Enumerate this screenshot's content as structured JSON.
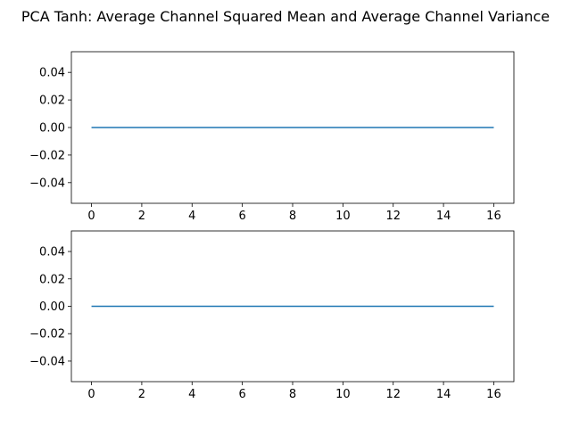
{
  "figure": {
    "title": "PCA Tanh: Average Channel Squared Mean and Average Channel Variance"
  },
  "chart_data": [
    {
      "type": "line",
      "title": "",
      "xlabel": "",
      "ylabel": "",
      "xlim": [
        -0.8,
        16.8
      ],
      "ylim": [
        -0.055,
        0.055
      ],
      "xticks": [
        0,
        2,
        4,
        6,
        8,
        10,
        12,
        14,
        16
      ],
      "xtick_labels": [
        "0",
        "2",
        "4",
        "6",
        "8",
        "10",
        "12",
        "14",
        "16"
      ],
      "yticks": [
        0.04,
        0.02,
        0.0,
        -0.02,
        -0.04
      ],
      "ytick_labels": [
        "0.04",
        "0.02",
        "0.00",
        "−0.02",
        "−0.04"
      ],
      "grid": false,
      "series": [
        {
          "color": "#1f77b4",
          "x": [
            0,
            1,
            2,
            3,
            4,
            5,
            6,
            7,
            8,
            9,
            10,
            11,
            12,
            13,
            14,
            15,
            16
          ],
          "y": [
            0,
            0,
            0,
            0,
            0,
            0,
            0,
            0,
            0,
            0,
            0,
            0,
            0,
            0,
            0,
            0,
            0
          ]
        }
      ]
    },
    {
      "type": "line",
      "title": "",
      "xlabel": "",
      "ylabel": "",
      "xlim": [
        -0.8,
        16.8
      ],
      "ylim": [
        -0.055,
        0.055
      ],
      "xticks": [
        0,
        2,
        4,
        6,
        8,
        10,
        12,
        14,
        16
      ],
      "xtick_labels": [
        "0",
        "2",
        "4",
        "6",
        "8",
        "10",
        "12",
        "14",
        "16"
      ],
      "yticks": [
        0.04,
        0.02,
        0.0,
        -0.02,
        -0.04
      ],
      "ytick_labels": [
        "0.04",
        "0.02",
        "0.00",
        "−0.02",
        "−0.04"
      ],
      "grid": false,
      "series": [
        {
          "color": "#1f77b4",
          "x": [
            0,
            1,
            2,
            3,
            4,
            5,
            6,
            7,
            8,
            9,
            10,
            11,
            12,
            13,
            14,
            15,
            16
          ],
          "y": [
            0,
            0,
            0,
            0,
            0,
            0,
            0,
            0,
            0,
            0,
            0,
            0,
            0,
            0,
            0,
            0,
            0
          ]
        }
      ]
    }
  ]
}
